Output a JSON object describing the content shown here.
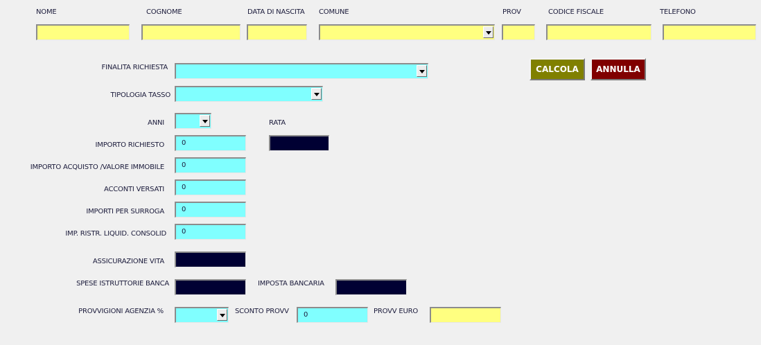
{
  "header_labels": {
    "nome": "NOME",
    "cognome": "COGNOME",
    "data_nascita": "DATA DI NASCITA",
    "comune": "COMUNE",
    "prov": "PROV",
    "codice_fiscale": "CODICE FISCALE",
    "telefono": "TELEFONO"
  },
  "header_values": {
    "nome": "",
    "cognome": "",
    "data_nascita": "",
    "comune": "",
    "prov": "",
    "codice_fiscale": "",
    "telefono": ""
  },
  "buttons": {
    "calcola": "CALCOLA",
    "annulla": "ANNULLA"
  },
  "labels": {
    "finalita": "FINALITA RICHIESTA",
    "tipologia": "TIPOLOGIA TASSO",
    "anni": "ANNI",
    "rata": "RATA",
    "importo_richiesto": "IMPORTO RICHIESTO",
    "importo_acquisto": "IMPORTO ACQUISTO /VALORE IMMOBILE",
    "acconti": "ACCONTI VERSATI",
    "surroga": "IMPORTI PER SURROGA",
    "ristr": "IMP. RISTR. LIQUID. CONSOLID",
    "assicurazione": "ASSICURAZIONE VITA",
    "spese": "SPESE ISTRUTTORIE BANCA",
    "imposta": "IMPOSTA BANCARIA",
    "provvigioni": "PROVVIGIONI AGENZIA %",
    "sconto": "SCONTO PROVV",
    "provv_euro": "PROVV  EURO"
  },
  "values": {
    "finalita": "",
    "tipologia": "",
    "anni": "",
    "rata": "",
    "importo_richiesto": "0",
    "importo_acquisto": "0",
    "acconti": "0",
    "surroga": "0",
    "ristr": "0",
    "assicurazione": "",
    "spese": "",
    "imposta": "",
    "provvigioni": "",
    "sconto": "0",
    "provv_euro": ""
  },
  "colors": {
    "input_yellow": "#ffff80",
    "input_cyan": "#80ffff",
    "output_navy": "#000033",
    "calcola_button": "#808000",
    "annulla_button": "#800000"
  }
}
